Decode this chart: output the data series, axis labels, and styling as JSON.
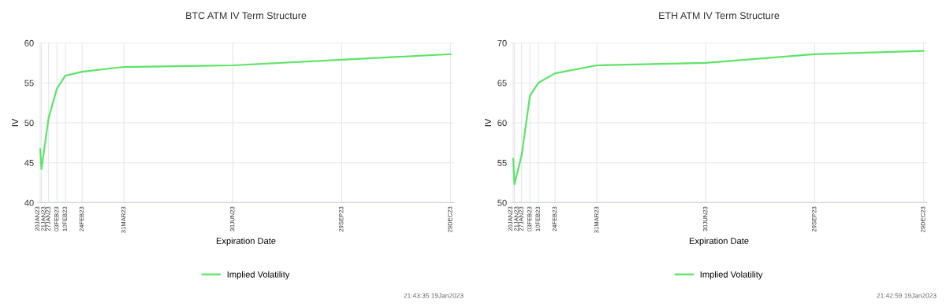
{
  "chart_data": [
    {
      "type": "line",
      "title": "BTC ATM IV Term Structure",
      "xlabel": "Expiration Date",
      "ylabel": "IV",
      "x": [
        "2023-01-20",
        "2023-01-21",
        "2023-01-27",
        "2023-02-03",
        "2023-02-10",
        "2023-02-24",
        "2023-03-31",
        "2023-06-30",
        "2023-09-29",
        "2023-12-29"
      ],
      "series": [
        {
          "name": "Implied Volatility",
          "color": "#5ee36a",
          "values": [
            46.7,
            44.2,
            50.6,
            54.3,
            55.9,
            56.4,
            57.0,
            57.2,
            57.9,
            58.6
          ]
        }
      ],
      "xlim": [
        "2023-01-18",
        "2024-01-01"
      ],
      "xticks": [
        {
          "value": "2023-01-20",
          "label": "20JAN23"
        },
        {
          "value": "2023-01-21",
          "label": "21JAN23"
        },
        {
          "value": "2023-01-27",
          "label": "27JAN23"
        },
        {
          "value": "2023-02-03",
          "label": "03FEB23"
        },
        {
          "value": "2023-02-10",
          "label": "10FEB23"
        },
        {
          "value": "2023-02-24",
          "label": "24FEB23"
        },
        {
          "value": "2023-03-31",
          "label": "31MAR23"
        },
        {
          "value": "2023-06-30",
          "label": "30JUN23"
        },
        {
          "value": "2023-09-29",
          "label": "29SEP23"
        },
        {
          "value": "2023-12-29",
          "label": "29DEC23"
        }
      ],
      "ylim": [
        40,
        60
      ],
      "yticks": [
        40,
        45,
        50,
        55,
        60
      ],
      "grid": true,
      "legend": "bottom",
      "marker": "none",
      "line_style": "solid",
      "annotations": [
        "21:43:35 19Jan2023"
      ]
    },
    {
      "type": "line",
      "title": "ETH ATM IV Term Structure",
      "xlabel": "Expiration Date",
      "ylabel": "IV",
      "x": [
        "2023-01-20",
        "2023-01-21",
        "2023-01-27",
        "2023-02-03",
        "2023-02-10",
        "2023-02-24",
        "2023-03-31",
        "2023-06-30",
        "2023-09-29",
        "2023-12-29"
      ],
      "series": [
        {
          "name": "Implied Volatility",
          "color": "#5ee36a",
          "values": [
            55.5,
            52.3,
            55.9,
            63.4,
            65.0,
            66.2,
            67.2,
            67.5,
            68.6,
            69.0
          ]
        }
      ],
      "xlim": [
        "2023-01-18",
        "2024-01-01"
      ],
      "xticks": [
        {
          "value": "2023-01-20",
          "label": "20JAN23"
        },
        {
          "value": "2023-01-21",
          "label": "21JAN23"
        },
        {
          "value": "2023-01-27",
          "label": "27JAN23"
        },
        {
          "value": "2023-02-03",
          "label": "03FEB23"
        },
        {
          "value": "2023-02-10",
          "label": "10FEB23"
        },
        {
          "value": "2023-02-24",
          "label": "24FEB23"
        },
        {
          "value": "2023-03-31",
          "label": "31MAR23"
        },
        {
          "value": "2023-06-30",
          "label": "30JUN23"
        },
        {
          "value": "2023-09-29",
          "label": "29SEP23"
        },
        {
          "value": "2023-12-29",
          "label": "29DEC23"
        }
      ],
      "ylim": [
        50,
        70
      ],
      "yticks": [
        50,
        55,
        60,
        65,
        70
      ],
      "grid": true,
      "legend": "bottom",
      "marker": "none",
      "line_style": "solid",
      "annotations": [
        "21:42:59 19Jan2023"
      ]
    }
  ]
}
